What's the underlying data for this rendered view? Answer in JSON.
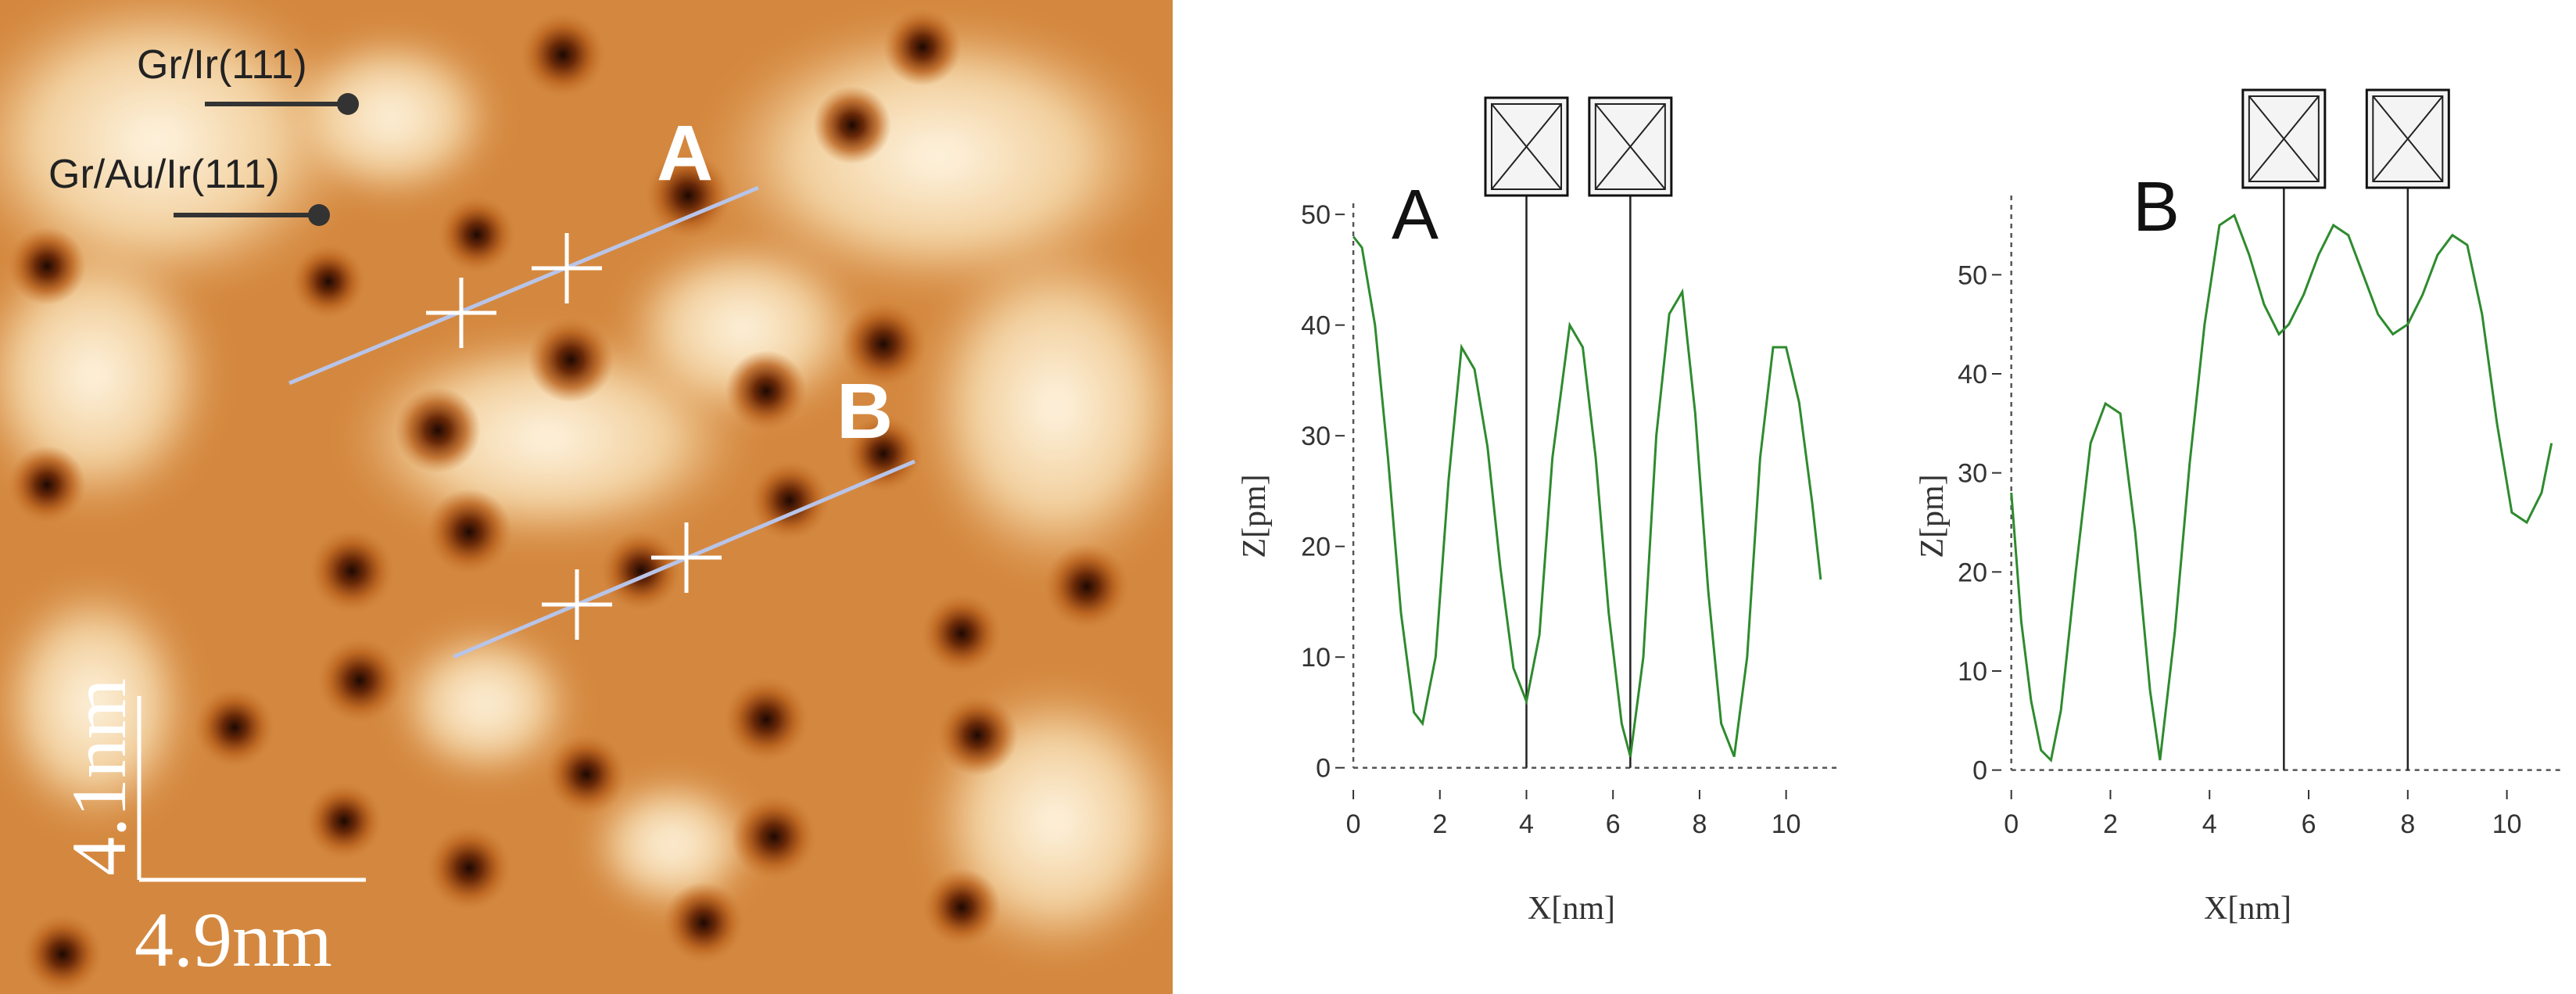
{
  "stm_image": {
    "labels": {
      "gr_ir": "Gr/Ir(111)",
      "gr_au_ir": "Gr/Au/Ir(111)",
      "line_a": "A",
      "line_b": "B"
    },
    "scale_bars": {
      "vertical": "4.1nm",
      "horizontal": "4.9nm"
    },
    "colors": {
      "bright": "#fdf0d8",
      "mid": "#d98a3a",
      "dark": "#2a0d03",
      "profile_line": "#b8c4e8",
      "marker": "#ffffff"
    }
  },
  "chart_data": [
    {
      "type": "line",
      "panel_label": "A",
      "xlabel": "X[nm]",
      "ylabel": "Z[pm]",
      "xlim": [
        -0.2,
        11
      ],
      "ylim": [
        -2,
        51
      ],
      "x_ticks": [
        0,
        2,
        4,
        6,
        8,
        10
      ],
      "y_ticks": [
        0,
        10,
        20,
        30,
        40,
        50
      ],
      "cursors_x": [
        4.0,
        6.4
      ],
      "line_color": "#2e8b2e",
      "series": [
        {
          "x": [
            0,
            0.2,
            0.5,
            0.8,
            1.1,
            1.4,
            1.6,
            1.9,
            2.2,
            2.5,
            2.8,
            3.1,
            3.4,
            3.7,
            4.0,
            4.3,
            4.6,
            5.0,
            5.3,
            5.6,
            5.9,
            6.2,
            6.4,
            6.7,
            7.0,
            7.3,
            7.6,
            7.9,
            8.2,
            8.5,
            8.8,
            9.1,
            9.4,
            9.7,
            10.0,
            10.3,
            10.6,
            10.8
          ],
          "y": [
            48,
            47,
            40,
            28,
            14,
            5,
            4,
            10,
            26,
            38,
            36,
            29,
            18,
            9,
            6,
            12,
            28,
            40,
            38,
            28,
            14,
            4,
            1,
            10,
            30,
            41,
            43,
            32,
            16,
            4,
            1,
            10,
            28,
            38,
            38,
            33,
            24,
            17
          ]
        }
      ]
    },
    {
      "type": "line",
      "panel_label": "B",
      "xlabel": "X[nm]",
      "ylabel": "Z[pm]",
      "xlim": [
        -0.2,
        11
      ],
      "ylim": [
        -2,
        58
      ],
      "x_ticks": [
        0,
        2,
        4,
        6,
        8,
        10
      ],
      "y_ticks": [
        0,
        10,
        20,
        30,
        40,
        50
      ],
      "cursors_x": [
        5.5,
        8.0
      ],
      "line_color": "#2e8b2e",
      "series": [
        {
          "x": [
            0,
            0.2,
            0.4,
            0.6,
            0.8,
            1.0,
            1.3,
            1.6,
            1.9,
            2.2,
            2.5,
            2.8,
            3.0,
            3.3,
            3.6,
            3.9,
            4.2,
            4.5,
            4.8,
            5.1,
            5.4,
            5.6,
            5.9,
            6.2,
            6.5,
            6.8,
            7.1,
            7.4,
            7.7,
            8.0,
            8.3,
            8.6,
            8.9,
            9.2,
            9.5,
            9.8,
            10.1,
            10.4,
            10.7,
            10.9
          ],
          "y": [
            28,
            15,
            7,
            2,
            1,
            6,
            20,
            33,
            37,
            36,
            24,
            8,
            1,
            14,
            31,
            45,
            55,
            56,
            52,
            47,
            44,
            45,
            48,
            52,
            55,
            54,
            50,
            46,
            44,
            45,
            48,
            52,
            54,
            53,
            46,
            35,
            26,
            25,
            28,
            33
          ]
        }
      ]
    }
  ]
}
